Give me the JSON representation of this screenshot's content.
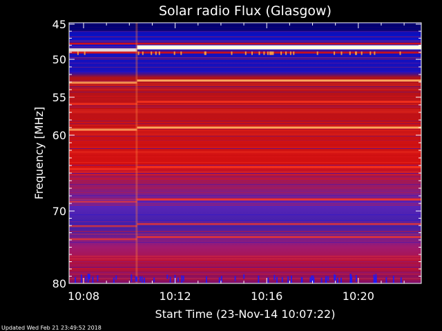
{
  "chart_data": {
    "type": "heatmap",
    "title": "Solar radio Flux (Glasgow)",
    "xlabel": "Start Time (23-Nov-14 10:07:22)",
    "ylabel": "Frequency [MHz]",
    "x_range": [
      "10:07:22",
      "10:22:45"
    ],
    "y_range": [
      45,
      80
    ],
    "y_ticks": [
      45,
      50,
      55,
      60,
      70,
      80
    ],
    "y_tick_labels": [
      "45",
      "50",
      "55",
      "60",
      "70",
      "80"
    ],
    "x_ticks": [
      "10:08",
      "10:12",
      "10:16",
      "10:20"
    ],
    "colormap": [
      "#000066",
      "#0a0ae6",
      "#6a2ad0",
      "#d40e0e",
      "#ff2a14",
      "#ffd9a0",
      "#fffff0"
    ],
    "emission_bands": [
      {
        "freq_mhz": 48.3,
        "intensity": "saturated"
      },
      {
        "freq_mhz": 52.8,
        "intensity": "high"
      },
      {
        "freq_mhz": 59.0,
        "intensity": "high"
      },
      {
        "freq_mhz": 55.6,
        "intensity": "medium"
      },
      {
        "freq_mhz": 64.2,
        "intensity": "medium"
      },
      {
        "freq_mhz": 68.5,
        "intensity": "medium"
      },
      {
        "freq_mhz": 71.8,
        "intensity": "medium"
      },
      {
        "freq_mhz": 73.6,
        "intensity": "medium"
      }
    ],
    "level_shift_time": "10:10:20",
    "grid": false
  },
  "footer": {
    "updated": "Updated Wed Feb 21 23:49:52 2018"
  },
  "colors": {
    "background": "#000000",
    "text": "#ffffff"
  }
}
